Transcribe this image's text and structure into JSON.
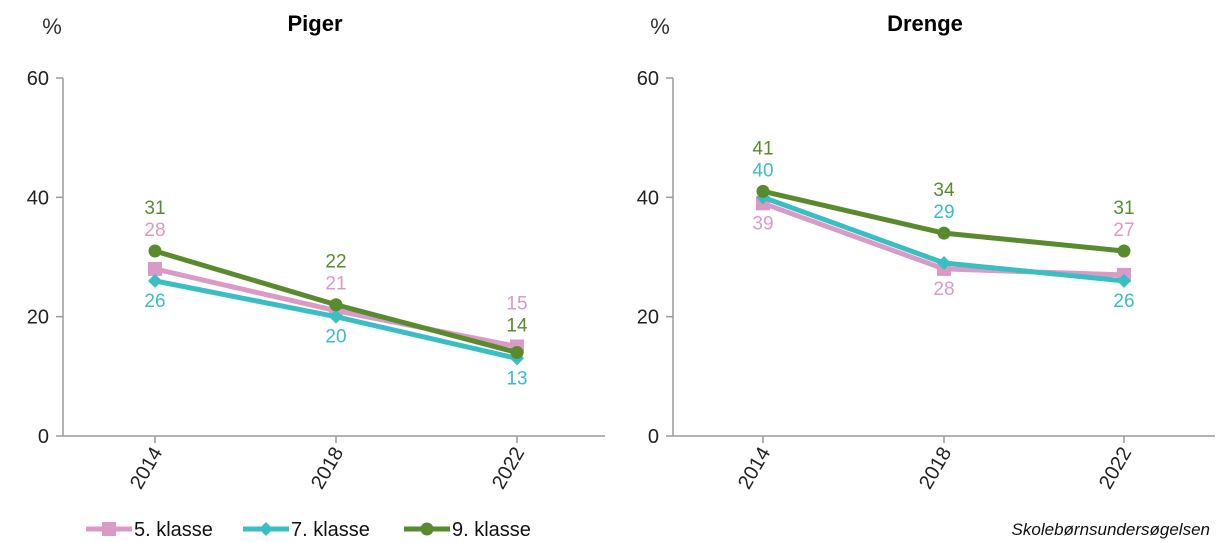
{
  "chart_data": [
    {
      "type": "line",
      "title": "Piger",
      "ylabel": "%",
      "xlabel": "",
      "ylim": [
        0,
        60
      ],
      "yticks": [
        0,
        20,
        40,
        60
      ],
      "x": [
        "2014",
        "2018",
        "2022"
      ],
      "grid": false,
      "series": [
        {
          "name": "5. klasse",
          "values": [
            28,
            21,
            15
          ],
          "color": "#d99bc6",
          "marker": "square",
          "label_pos": [
            "above",
            "above",
            "above"
          ]
        },
        {
          "name": "7. klasse",
          "values": [
            26,
            20,
            13
          ],
          "color": "#3bbdc4",
          "marker": "diamond",
          "label_pos": [
            "below",
            "below",
            "below"
          ]
        },
        {
          "name": "9. klasse",
          "values": [
            31,
            22,
            14
          ],
          "color": "#5a8a2e",
          "marker": "circle",
          "label_pos": [
            "above",
            "above",
            "above"
          ]
        }
      ]
    },
    {
      "type": "line",
      "title": "Drenge",
      "ylabel": "%",
      "xlabel": "",
      "ylim": [
        0,
        60
      ],
      "yticks": [
        0,
        20,
        40,
        60
      ],
      "x": [
        "2014",
        "2018",
        "2022"
      ],
      "grid": false,
      "series": [
        {
          "name": "5. klasse",
          "values": [
            39,
            28,
            27
          ],
          "color": "#d99bc6",
          "marker": "square",
          "label_pos": [
            "below",
            "below",
            "above"
          ]
        },
        {
          "name": "7. klasse",
          "values": [
            40,
            29,
            26
          ],
          "color": "#3bbdc4",
          "marker": "diamond",
          "label_pos": [
            "above",
            "above",
            "below"
          ]
        },
        {
          "name": "9. klasse",
          "values": [
            41,
            34,
            31
          ],
          "color": "#5a8a2e",
          "marker": "circle",
          "label_pos": [
            "above",
            "above",
            "above"
          ]
        }
      ]
    }
  ],
  "legend": {
    "placement": "bottom-left",
    "items": [
      "5. klasse",
      "7. klasse",
      "9. klasse"
    ]
  },
  "source": "Skolebørnsundersøgelsen"
}
